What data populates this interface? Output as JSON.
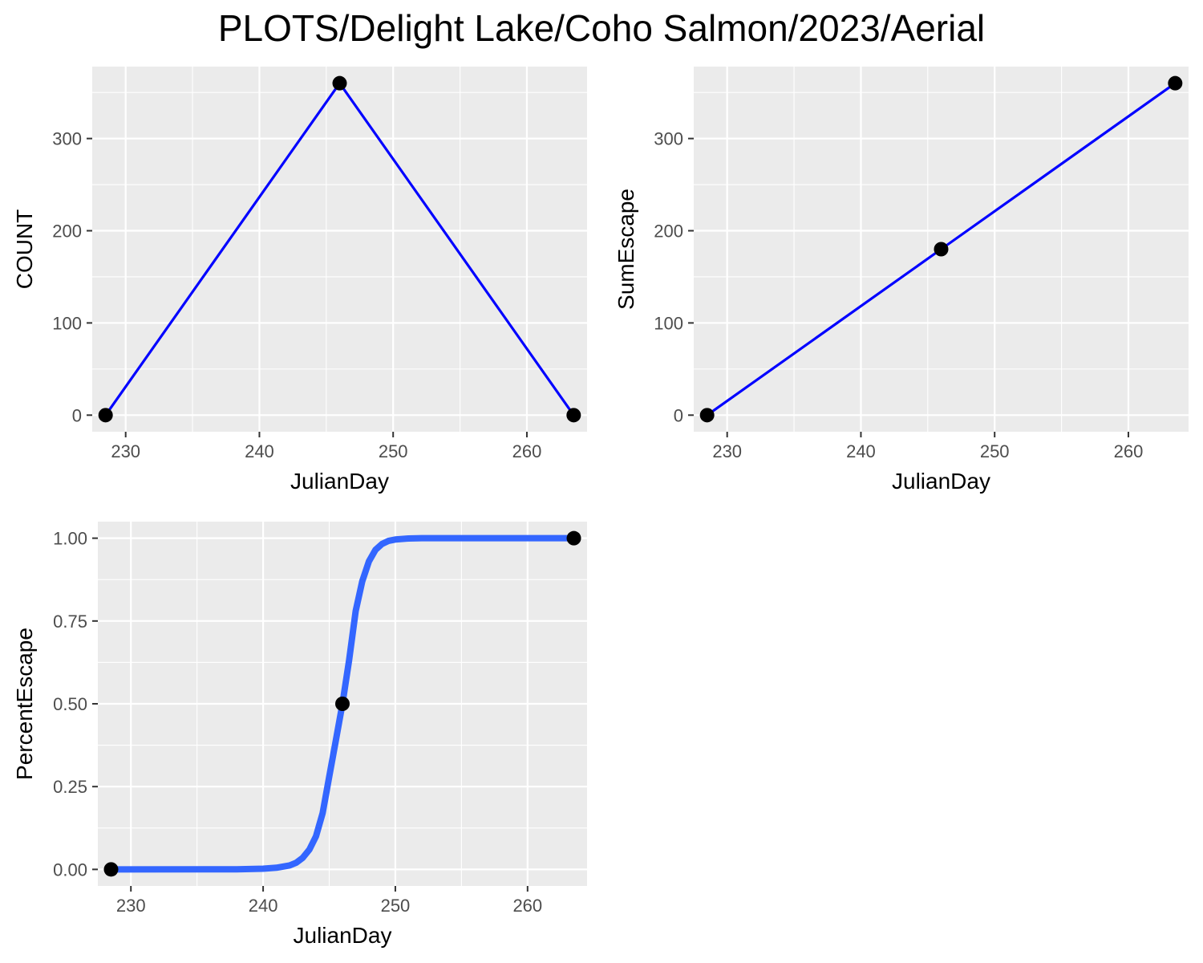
{
  "figure_title": "PLOTS/Delight Lake/Coho Salmon/2023/Aerial",
  "colors": {
    "panel_background": "#ebebeb",
    "grid": "#ffffff",
    "line_primary": "#0000ff",
    "curve_fit": "#3366ff",
    "point": "#000000"
  },
  "chart_data": [
    {
      "type": "line",
      "xlabel": "JulianDay",
      "ylabel": "COUNT",
      "xlim": [
        227.5,
        264.5
      ],
      "ylim": [
        -18,
        378
      ],
      "xticks": [
        230,
        240,
        250,
        260
      ],
      "xtick_labels": [
        "230",
        "240",
        "250",
        "260"
      ],
      "yticks": [
        0,
        100,
        200,
        300
      ],
      "ytick_labels": [
        "0",
        "100",
        "200",
        "300"
      ],
      "grid": true,
      "series": [
        {
          "x": [
            228.5,
            246,
            263.5
          ],
          "y": [
            0,
            360,
            0
          ],
          "color": "#0000ff",
          "markers": true
        }
      ]
    },
    {
      "type": "line",
      "xlabel": "JulianDay",
      "ylabel": "SumEscape",
      "xlim": [
        227.5,
        264.5
      ],
      "ylim": [
        -18,
        378
      ],
      "xticks": [
        230,
        240,
        250,
        260
      ],
      "xtick_labels": [
        "230",
        "240",
        "250",
        "260"
      ],
      "yticks": [
        0,
        100,
        200,
        300
      ],
      "ytick_labels": [
        "0",
        "100",
        "200",
        "300"
      ],
      "grid": true,
      "series": [
        {
          "x": [
            228.5,
            246,
            263.5
          ],
          "y": [
            0,
            180,
            360
          ],
          "color": "#0000ff",
          "markers": true
        }
      ]
    },
    {
      "type": "line",
      "xlabel": "JulianDay",
      "ylabel": "PercentEscape",
      "xlim": [
        227.5,
        264.5
      ],
      "ylim": [
        -0.05,
        1.05
      ],
      "xticks": [
        230,
        240,
        250,
        260
      ],
      "xtick_labels": [
        "230",
        "240",
        "250",
        "260"
      ],
      "yticks": [
        0,
        0.25,
        0.5,
        0.75,
        1.0
      ],
      "ytick_labels": [
        "0.00",
        "0.25",
        "0.50",
        "0.75",
        "1.00"
      ],
      "grid": true,
      "series": [
        {
          "x": [
            228.5,
            246,
            263.5
          ],
          "y": [
            0,
            0.5,
            1.0
          ],
          "color": "#000000",
          "markers": true,
          "line": false
        },
        {
          "x": [
            228.5,
            238,
            240,
            241,
            242,
            242.5,
            243,
            243.5,
            244,
            244.5,
            245,
            245.5,
            246,
            246.5,
            247,
            247.5,
            248,
            248.5,
            249,
            249.5,
            250,
            251,
            252,
            254,
            263.5
          ],
          "y": [
            0,
            0.0003,
            0.002,
            0.005,
            0.012,
            0.02,
            0.035,
            0.06,
            0.1,
            0.17,
            0.28,
            0.39,
            0.5,
            0.63,
            0.78,
            0.87,
            0.93,
            0.965,
            0.983,
            0.992,
            0.996,
            0.999,
            1.0,
            1.0,
            1.0
          ],
          "color": "#3366ff",
          "markers": false,
          "line": true,
          "thick": true
        }
      ]
    }
  ]
}
